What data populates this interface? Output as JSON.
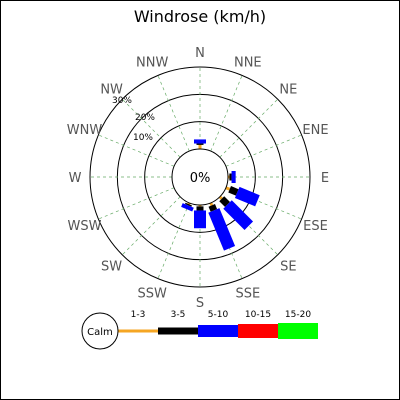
{
  "chart_data": {
    "type": "windrose",
    "title": "Windrose (km/h)",
    "unit": "km/h",
    "center_label": "0%",
    "ring_labels": [
      "10%",
      "20%",
      "30%"
    ],
    "rings": [
      10,
      20,
      30
    ],
    "max_percent": 30,
    "directions": [
      "N",
      "NNE",
      "NE",
      "ENE",
      "E",
      "ESE",
      "SE",
      "SSE",
      "S",
      "SSW",
      "SW",
      "WSW",
      "W",
      "WNW",
      "NW",
      "NNW"
    ],
    "speed_classes": [
      {
        "label": "1-3",
        "color": "#f5a623"
      },
      {
        "label": "3-5",
        "color": "#000000"
      },
      {
        "label": "5-10",
        "color": "#0000ff"
      },
      {
        "label": "10-15",
        "color": "#ff0000"
      },
      {
        "label": "15-20",
        "color": "#00ff00"
      }
    ],
    "calm_label": "Calm",
    "series": [
      {
        "dir": "N",
        "values": [
          1.5,
          0.5,
          1.5,
          0,
          0
        ]
      },
      {
        "dir": "NNE",
        "values": [
          0,
          0,
          0,
          0,
          0
        ]
      },
      {
        "dir": "NE",
        "values": [
          0,
          0,
          0,
          0,
          0
        ]
      },
      {
        "dir": "ENE",
        "values": [
          0,
          0,
          0,
          0,
          0
        ]
      },
      {
        "dir": "E",
        "values": [
          0.5,
          0.8,
          1.5,
          0,
          0
        ]
      },
      {
        "dir": "ESE",
        "values": [
          1.5,
          3.0,
          8.0,
          0,
          0
        ]
      },
      {
        "dir": "SE",
        "values": [
          1.0,
          3.0,
          11.0,
          0,
          0
        ]
      },
      {
        "dir": "SSE",
        "values": [
          1.0,
          2.0,
          15.0,
          0,
          0
        ]
      },
      {
        "dir": "S",
        "values": [
          0.5,
          1.5,
          6.5,
          0,
          0
        ]
      },
      {
        "dir": "SSW",
        "values": [
          0.5,
          0.5,
          1.5,
          0,
          0
        ]
      },
      {
        "dir": "SW",
        "values": [
          0,
          0,
          0,
          0,
          0
        ]
      },
      {
        "dir": "WSW",
        "values": [
          0,
          0,
          0,
          0,
          0
        ]
      },
      {
        "dir": "W",
        "values": [
          0,
          0,
          0,
          0,
          0
        ]
      },
      {
        "dir": "WNW",
        "values": [
          0,
          0,
          0,
          0,
          0
        ]
      },
      {
        "dir": "NW",
        "values": [
          0,
          0,
          0,
          0,
          0
        ]
      },
      {
        "dir": "NNW",
        "values": [
          0,
          0,
          0,
          0,
          0
        ]
      }
    ]
  }
}
